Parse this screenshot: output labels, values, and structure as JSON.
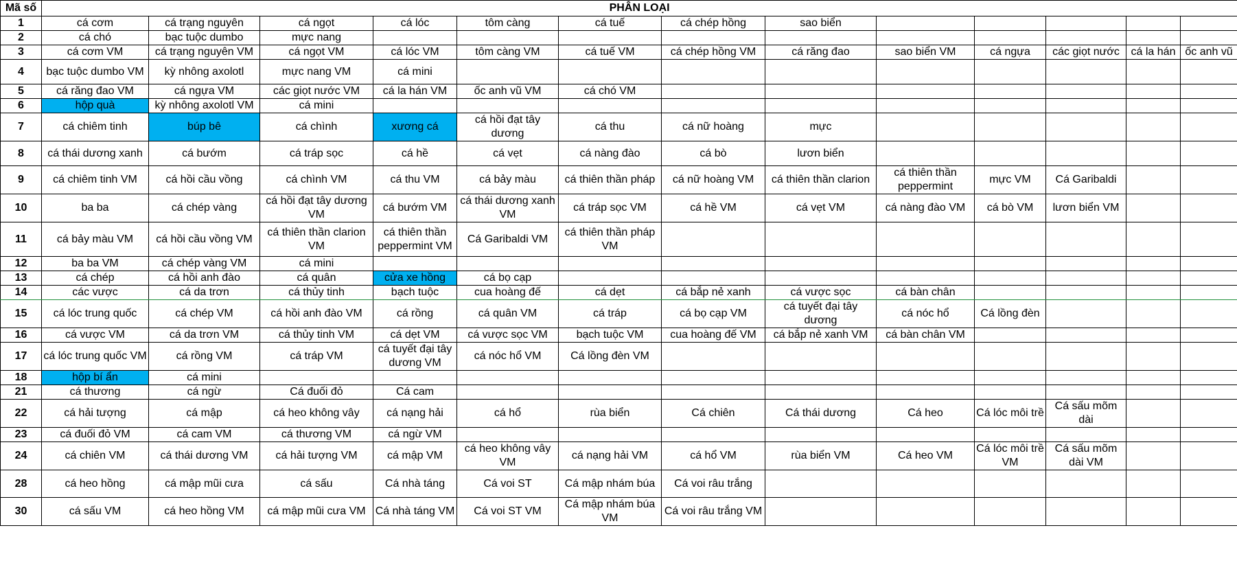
{
  "sheet": {
    "col0_header": "Mã số",
    "group_header": "PHÂN LOẠI",
    "highlight_color": "#00b0f0",
    "rows": [
      {
        "id": "1",
        "cells": [
          "cá cơm",
          "cá trạng nguyên",
          "cá ngọt",
          "cá lóc",
          "tôm càng",
          "cá tuế",
          "cá chép hồng",
          "sao biển",
          "",
          "",
          "",
          "",
          ""
        ]
      },
      {
        "id": "2",
        "cells": [
          "cá chó",
          "bạc tuộc dumbo",
          "mực nang",
          "",
          "",
          "",
          "",
          "",
          "",
          "",
          "",
          "",
          ""
        ]
      },
      {
        "id": "3",
        "cells": [
          "cá cơm VM",
          "cá trạng nguyên VM",
          "cá ngọt VM",
          "cá lóc VM",
          "tôm càng VM",
          "cá tuế VM",
          "cá chép hồng VM",
          "cá răng đao",
          "sao biển VM",
          "cá ngựa",
          "các giọt nước",
          "cá la hán",
          "ốc anh vũ"
        ]
      },
      {
        "id": "4",
        "cells": [
          "bạc tuộc dumbo VM",
          "kỳ nhông axolotl",
          "mực nang VM",
          "cá mini",
          "",
          "",
          "",
          "",
          "",
          "",
          "",
          "",
          ""
        ]
      },
      {
        "id": "5",
        "cells": [
          "cá răng đao VM",
          "cá ngựa VM",
          "các giọt nước VM",
          "cá la hán VM",
          "ốc anh vũ VM",
          "cá chó VM",
          "",
          "",
          "",
          "",
          "",
          "",
          ""
        ]
      },
      {
        "id": "6",
        "cells": [
          "hộp quà",
          "kỳ nhông axolotl VM",
          "cá mini",
          "",
          "",
          "",
          "",
          "",
          "",
          "",
          "",
          "",
          ""
        ]
      },
      {
        "id": "7",
        "cells": [
          "cá chiêm tinh",
          "búp bê",
          "cá chình",
          "xương cá",
          "cá hồi đạt tây dương",
          "cá thu",
          "cá nữ hoàng",
          "mực",
          "",
          "",
          "",
          "",
          ""
        ]
      },
      {
        "id": "8",
        "cells": [
          "cá thái dương xanh",
          "cá bướm",
          "cá tráp sọc",
          "cá hề",
          "cá vẹt",
          "cá nàng đào",
          "cá bò",
          "lươn biển",
          "",
          "",
          "",
          "",
          ""
        ]
      },
      {
        "id": "9",
        "cells": [
          "cá chiêm tinh VM",
          "cá hồi cầu vồng",
          "cá chình VM",
          "cá thu VM",
          "cá bảy màu",
          "cá thiên thần pháp",
          "cá nữ hoàng VM",
          "cá thiên thần clarion",
          "cá thiên thần peppermint",
          "mực VM",
          "Cá Garibaldi",
          "",
          ""
        ]
      },
      {
        "id": "10",
        "cells": [
          "ba ba",
          "cá chép vàng",
          "cá hồi đạt tây dương VM",
          "cá bướm VM",
          "cá thái dương xanh VM",
          "cá tráp sọc VM",
          "cá hề VM",
          "cá vẹt VM",
          "cá nàng đào VM",
          "cá bò VM",
          "lươn biển VM",
          "",
          ""
        ]
      },
      {
        "id": "11",
        "cells": [
          "cá bảy màu VM",
          "cá hồi cầu vồng VM",
          "cá thiên thần clarion VM",
          "cá thiên thần peppermint VM",
          "Cá Garibaldi VM",
          "cá thiên thần pháp VM",
          "",
          "",
          "",
          "",
          "",
          "",
          ""
        ]
      },
      {
        "id": "12",
        "cells": [
          "ba ba VM",
          "cá chép vàng VM",
          "cá mini",
          "",
          "",
          "",
          "",
          "",
          "",
          "",
          "",
          "",
          ""
        ]
      },
      {
        "id": "13",
        "cells": [
          "cá chép",
          "cá hồi anh đào",
          "cá quân",
          "cửa xe hồng",
          "cá bọ cạp",
          "",
          "",
          "",
          "",
          "",
          "",
          "",
          ""
        ]
      },
      {
        "id": "14",
        "cells": [
          "các vược",
          "cá da trơn",
          "cá thủy tinh",
          "bạch tuộc",
          "cua hoàng đế",
          "cá dẹt",
          "cá bắp nẻ xanh",
          "cá vược sọc",
          "cá bàn chân",
          "",
          "",
          "",
          ""
        ]
      },
      {
        "id": "15",
        "cells": [
          "cá lóc trung quốc",
          "cá chép VM",
          "cá hồi anh đào VM",
          "cá rồng",
          "cá quân VM",
          "cá tráp",
          "cá bọ cạp VM",
          "cá tuyết đại tây dương",
          "cá nóc hổ",
          "Cá lồng đèn",
          "",
          "",
          ""
        ]
      },
      {
        "id": "16",
        "cells": [
          "cá vược VM",
          "cá da trơn VM",
          "cá thủy tinh VM",
          "cá dẹt VM",
          "cá vược sọc VM",
          "bạch tuộc VM",
          "cua hoàng đế VM",
          "cá bắp nẻ xanh VM",
          "cá bàn chân VM",
          "",
          "",
          "",
          ""
        ]
      },
      {
        "id": "17",
        "cells": [
          "cá lóc trung quốc VM",
          "cá rồng VM",
          "cá tráp VM",
          "cá tuyết đại tây dương VM",
          "cá nóc hổ VM",
          "Cá lồng đèn VM",
          "",
          "",
          "",
          "",
          "",
          "",
          ""
        ]
      },
      {
        "id": "18",
        "cells": [
          "hộp bí ẩn",
          "cá mini",
          "",
          "",
          "",
          "",
          "",
          "",
          "",
          "",
          "",
          "",
          ""
        ]
      },
      {
        "id": "21",
        "cells": [
          "cá thương",
          "cá ngừ",
          "Cá đuối đỏ",
          "Cá cam",
          "",
          "",
          "",
          "",
          "",
          "",
          "",
          "",
          ""
        ]
      },
      {
        "id": "22",
        "cells": [
          "cá hải tượng",
          "cá mập",
          "cá heo không vây",
          "cá nạng hải",
          "cá hổ",
          "rùa biển",
          "Cá chiên",
          "Cá thái dương",
          "Cá heo",
          "Cá lóc môi trề",
          "Cá sấu mõm dài",
          "",
          ""
        ]
      },
      {
        "id": "23",
        "cells": [
          "cá đuối đỏ VM",
          "cá cam VM",
          "cá thương VM",
          "cá ngừ VM",
          "",
          "",
          "",
          "",
          "",
          "",
          "",
          "",
          ""
        ]
      },
      {
        "id": "24",
        "cells": [
          "cá chiên VM",
          "cá thái dương VM",
          "cá hải tượng VM",
          "cá mập VM",
          "cá heo không vây VM",
          "cá nạng hải VM",
          "cá hổ VM",
          "rùa biển VM",
          "Cá heo VM",
          "Cá lóc môi trề VM",
          "Cá sấu mõm dài VM",
          "",
          ""
        ]
      },
      {
        "id": "28",
        "cells": [
          "cá heo hồng",
          "cá mập mũi cưa",
          "cá sấu",
          "Cá nhà táng",
          "Cá voi ST",
          "Cá mập nhám búa",
          "Cá voi râu trắng",
          "",
          "",
          "",
          "",
          "",
          ""
        ]
      },
      {
        "id": "30",
        "cells": [
          "cá sấu VM",
          "cá heo hồng VM",
          "cá mập mũi cưa VM",
          "Cá nhà táng VM",
          "Cá voi ST VM",
          "Cá mập nhám búa VM",
          "Cá voi râu trắng VM",
          "",
          "",
          "",
          "",
          "",
          ""
        ]
      }
    ],
    "highlighted_cells": [
      {
        "row": "6",
        "col": 1
      },
      {
        "row": "7",
        "col": 2
      },
      {
        "row": "7",
        "col": 4
      },
      {
        "row": "13",
        "col": 4
      },
      {
        "row": "18",
        "col": 1
      }
    ]
  }
}
